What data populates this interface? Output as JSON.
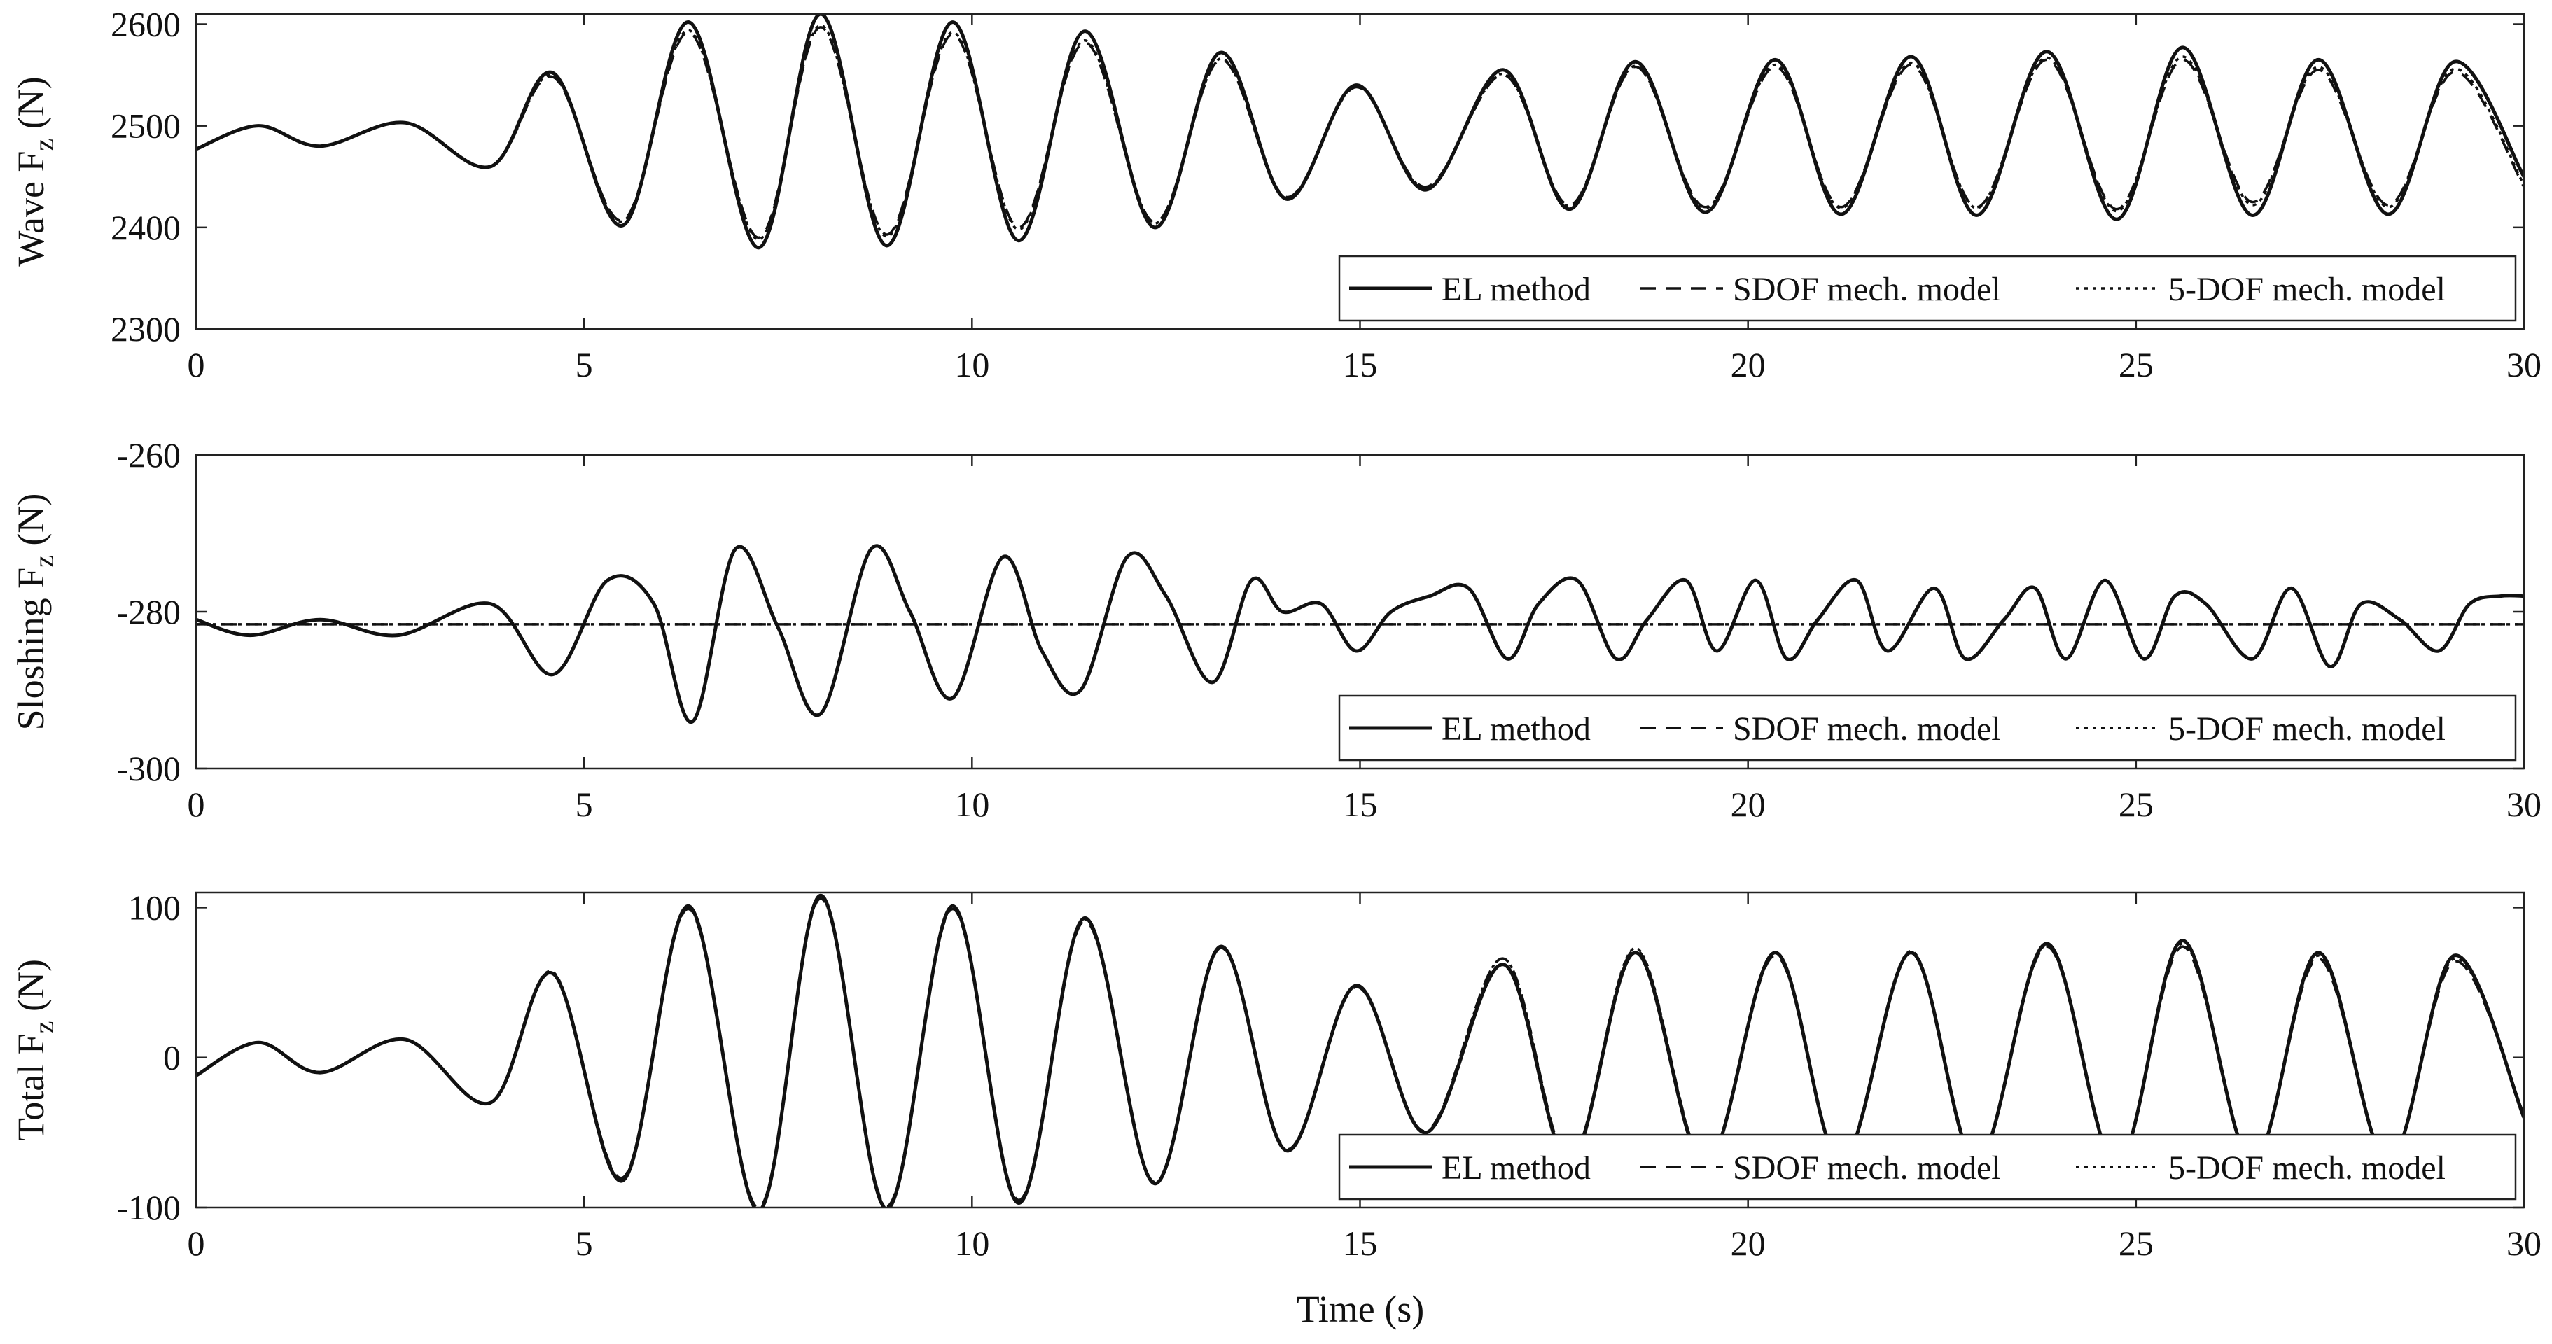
{
  "chart_data": [
    {
      "type": "line",
      "ylabel": {
        "main": "Wave F",
        "sub": "z",
        "unit": "(N)"
      },
      "xlabel": "",
      "xlim": [
        0,
        30
      ],
      "ylim": [
        2300,
        2610
      ],
      "xticks": [
        0,
        5,
        10,
        15,
        20,
        25,
        30
      ],
      "yticks": [
        2300,
        2400,
        2500,
        2600
      ],
      "legend": {
        "placement": "bottom-right",
        "entries": [
          "EL method",
          "SDOF mech. model",
          "5-DOF mech. model"
        ]
      },
      "series": [
        {
          "name": "EL method",
          "style": "solid",
          "x": [
            0,
            0.8,
            1.6,
            2.7,
            3.8,
            4.6,
            5.5,
            6.35,
            7.25,
            8.05,
            8.9,
            9.75,
            10.6,
            11.45,
            12.35,
            13.2,
            14.05,
            14.95,
            15.85,
            16.85,
            17.7,
            18.55,
            19.45,
            20.35,
            21.2,
            22.1,
            22.95,
            23.85,
            24.75,
            25.6,
            26.5,
            27.35,
            28.25,
            29.1,
            30
          ],
          "y": [
            2477,
            2500,
            2480,
            2503,
            2460,
            2552,
            2402,
            2602,
            2380,
            2610,
            2382,
            2602,
            2387,
            2593,
            2400,
            2572,
            2428,
            2540,
            2437,
            2555,
            2418,
            2563,
            2415,
            2565,
            2413,
            2568,
            2412,
            2573,
            2408,
            2577,
            2412,
            2565,
            2413,
            2563,
            2450
          ]
        },
        {
          "name": "SDOF mech. model",
          "style": "dashed",
          "x": [
            0,
            0.8,
            1.6,
            2.7,
            3.8,
            4.6,
            5.5,
            6.35,
            7.25,
            8.05,
            8.9,
            9.75,
            10.6,
            11.45,
            12.35,
            13.2,
            14.05,
            14.95,
            15.85,
            16.85,
            17.7,
            18.55,
            19.45,
            20.35,
            21.2,
            22.1,
            22.95,
            23.85,
            24.75,
            25.6,
            26.5,
            27.35,
            28.25,
            29.1,
            30
          ],
          "y": [
            2477,
            2500,
            2480,
            2503,
            2460,
            2548,
            2407,
            2592,
            2390,
            2597,
            2393,
            2590,
            2400,
            2582,
            2405,
            2565,
            2430,
            2538,
            2440,
            2550,
            2422,
            2558,
            2420,
            2558,
            2420,
            2560,
            2420,
            2565,
            2418,
            2565,
            2425,
            2555,
            2422,
            2553,
            2440
          ]
        },
        {
          "name": "5-DOF mech. model",
          "style": "dotted",
          "x": [
            0,
            0.8,
            1.6,
            2.7,
            3.8,
            4.6,
            5.5,
            6.35,
            7.25,
            8.05,
            8.9,
            9.75,
            10.6,
            11.45,
            12.35,
            13.2,
            14.05,
            14.95,
            15.85,
            16.85,
            17.7,
            18.55,
            19.45,
            20.35,
            21.2,
            22.1,
            22.95,
            23.85,
            24.75,
            25.6,
            26.5,
            27.35,
            28.25,
            29.1,
            30
          ],
          "y": [
            2477,
            2500,
            2480,
            2503,
            2460,
            2549,
            2406,
            2594,
            2388,
            2599,
            2391,
            2592,
            2398,
            2584,
            2404,
            2566,
            2429,
            2539,
            2439,
            2551,
            2421,
            2559,
            2419,
            2560,
            2419,
            2562,
            2419,
            2567,
            2416,
            2568,
            2422,
            2558,
            2420,
            2556,
            2442
          ]
        }
      ]
    },
    {
      "type": "line",
      "ylabel": {
        "main": "Sloshing F",
        "sub": "z",
        "unit": "(N)"
      },
      "xlabel": "",
      "xlim": [
        0,
        30
      ],
      "ylim": [
        -300,
        -260
      ],
      "xticks": [
        0,
        5,
        10,
        15,
        20,
        25,
        30
      ],
      "yticks": [
        -300,
        -280,
        -260
      ],
      "legend": {
        "placement": "bottom-right",
        "entries": [
          "EL method",
          "SDOF mech. model",
          "5-DOF mech. model"
        ]
      },
      "series": [
        {
          "name": "EL method",
          "style": "solid",
          "x": [
            0,
            0.7,
            1.6,
            2.6,
            3.8,
            4.6,
            5.3,
            5.9,
            6.4,
            6.95,
            7.5,
            8.05,
            8.7,
            9.2,
            9.75,
            10.4,
            10.9,
            11.4,
            12.0,
            12.5,
            13.1,
            13.6,
            14.0,
            14.5,
            14.95,
            15.4,
            15.9,
            16.4,
            16.9,
            17.3,
            17.8,
            18.3,
            18.7,
            19.2,
            19.6,
            20.1,
            20.5,
            20.9,
            21.4,
            21.8,
            22.4,
            22.8,
            23.3,
            23.7,
            24.1,
            24.6,
            25.1,
            25.5,
            25.9,
            26.5,
            27.0,
            27.5,
            27.9,
            28.4,
            28.9,
            29.3,
            29.7,
            30
          ],
          "y": [
            -281,
            -283,
            -281,
            -283,
            -279,
            -288,
            -276,
            -279,
            -294,
            -272,
            -282,
            -293,
            -272,
            -280,
            -291,
            -273,
            -285,
            -290,
            -273,
            -278,
            -289,
            -276,
            -280,
            -279,
            -285,
            -280,
            -278,
            -277,
            -286,
            -279,
            -276,
            -286,
            -281,
            -276,
            -285,
            -276,
            -286,
            -281,
            -276,
            -285,
            -277,
            -286,
            -281,
            -277,
            -286,
            -276,
            -286,
            -278,
            -279,
            -286,
            -277,
            -287,
            -279,
            -281,
            -285,
            -279,
            -278,
            -278
          ]
        },
        {
          "name": "SDOF mech. model",
          "style": "dashed",
          "x": [
            0,
            30
          ],
          "y": [
            -281.6,
            -281.6
          ]
        },
        {
          "name": "5-DOF mech. model",
          "style": "dotted",
          "x": [
            0,
            30
          ],
          "y": [
            -281.6,
            -281.6
          ]
        }
      ]
    },
    {
      "type": "line",
      "ylabel": {
        "main": "Total F",
        "sub": "z",
        "unit": "(N)"
      },
      "xlabel": "Time (s)",
      "xlim": [
        0,
        30
      ],
      "ylim": [
        -100,
        110
      ],
      "xticks": [
        0,
        5,
        10,
        15,
        20,
        25,
        30
      ],
      "yticks": [
        -100,
        0,
        100
      ],
      "legend": {
        "placement": "bottom-right",
        "entries": [
          "EL method",
          "SDOF mech. model",
          "5-DOF mech. model"
        ]
      },
      "series": [
        {
          "name": "EL method",
          "style": "solid",
          "x": [
            0,
            0.8,
            1.6,
            2.7,
            3.8,
            4.6,
            5.5,
            6.35,
            7.25,
            8.05,
            8.9,
            9.75,
            10.6,
            11.45,
            12.35,
            13.2,
            14.05,
            14.95,
            15.85,
            16.85,
            17.7,
            18.55,
            19.45,
            20.35,
            21.2,
            22.1,
            22.95,
            23.85,
            24.75,
            25.6,
            26.5,
            27.35,
            28.25,
            29.1,
            30
          ],
          "y": [
            -12,
            10,
            -10,
            12,
            -30,
            56,
            -82,
            101,
            -102,
            108,
            -101,
            101,
            -97,
            93,
            -84,
            74,
            -62,
            48,
            -50,
            62,
            -70,
            70,
            -72,
            70,
            -70,
            70,
            -70,
            76,
            -72,
            78,
            -70,
            70,
            -70,
            68,
            -40
          ]
        },
        {
          "name": "SDOF mech. model",
          "style": "dashed",
          "x": [
            0,
            0.8,
            1.6,
            2.7,
            3.8,
            4.6,
            5.5,
            6.35,
            7.25,
            8.05,
            8.9,
            9.75,
            10.6,
            11.45,
            12.35,
            13.2,
            14.05,
            14.95,
            15.85,
            16.85,
            17.7,
            18.55,
            19.45,
            20.35,
            21.2,
            22.1,
            22.95,
            23.85,
            24.75,
            25.6,
            26.5,
            27.35,
            28.25,
            29.1,
            30
          ],
          "y": [
            -12,
            10,
            -10,
            12,
            -30,
            56,
            -80,
            99,
            -100,
            106,
            -99,
            99,
            -95,
            91,
            -83,
            73,
            -61,
            47,
            -49,
            66,
            -68,
            72,
            -70,
            68,
            -68,
            70,
            -68,
            74,
            -70,
            74,
            -68,
            66,
            -68,
            64,
            -38
          ]
        },
        {
          "name": "5-DOF mech. model",
          "style": "dotted",
          "x": [
            0,
            0.8,
            1.6,
            2.7,
            3.8,
            4.6,
            5.5,
            6.35,
            7.25,
            8.05,
            8.9,
            9.75,
            10.6,
            11.45,
            12.35,
            13.2,
            14.05,
            14.95,
            15.85,
            16.85,
            17.7,
            18.55,
            19.45,
            20.35,
            21.2,
            22.1,
            22.95,
            23.85,
            24.75,
            25.6,
            26.5,
            27.35,
            28.25,
            29.1,
            30
          ],
          "y": [
            -12,
            10,
            -10,
            12,
            -30,
            57,
            -81,
            100,
            -101,
            107,
            -100,
            100,
            -96,
            92,
            -84,
            74,
            -62,
            48,
            -50,
            66,
            -69,
            73,
            -71,
            70,
            -69,
            71,
            -69,
            75,
            -71,
            76,
            -69,
            68,
            -69,
            66,
            -39
          ]
        }
      ]
    }
  ]
}
